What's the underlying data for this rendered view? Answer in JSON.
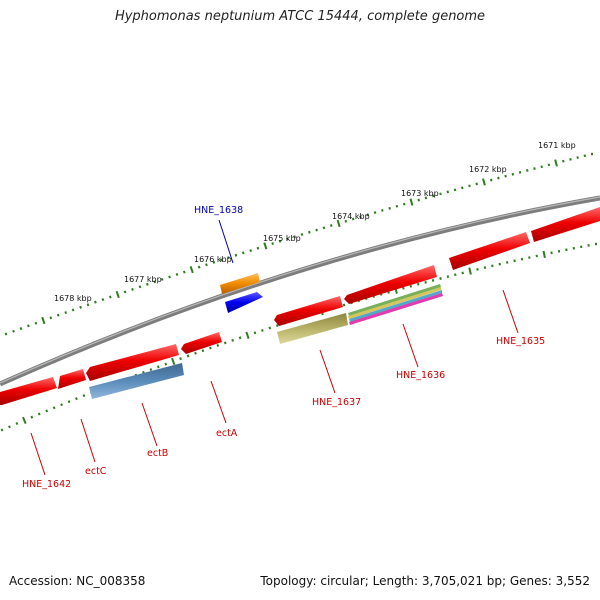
{
  "title": "Hyphomonas neptunium ATCC 15444, complete genome",
  "footer": {
    "accession": "Accession: NC_008358",
    "summary": "Topology: circular; Length: 3,705,021 bp; Genes: 3,552"
  },
  "colors": {
    "backbone": "#8a8a8a",
    "ruler": "#2f7d20",
    "gene": "#ee0000",
    "gene_label": "#cc0000",
    "highlight_label": "#0000bb",
    "orange_feature": "#f08c00",
    "blue_feature": "#0000ee",
    "steelblue_feature": "#4f7fae",
    "olive_feature": "#b4ae62"
  },
  "scale": {
    "unit": "kbp",
    "ticks": [
      {
        "label": "1671 kbp"
      },
      {
        "label": "1672 kbp"
      },
      {
        "label": "1673 kbp"
      },
      {
        "label": "1674 kbp"
      },
      {
        "label": "1675 kbp"
      },
      {
        "label": "1676 kbp"
      },
      {
        "label": "1677 kbp"
      },
      {
        "label": "1678 kbp"
      }
    ]
  },
  "gene_labels": [
    {
      "name": "HNE_1638",
      "color": "highlight_label"
    },
    {
      "name": "HNE_1635",
      "color": "gene_label"
    },
    {
      "name": "HNE_1636",
      "color": "gene_label"
    },
    {
      "name": "HNE_1637",
      "color": "gene_label"
    },
    {
      "name": "ectA",
      "color": "gene_label"
    },
    {
      "name": "ectB",
      "color": "gene_label"
    },
    {
      "name": "ectC",
      "color": "gene_label"
    },
    {
      "name": "HNE_1642",
      "color": "gene_label"
    }
  ]
}
